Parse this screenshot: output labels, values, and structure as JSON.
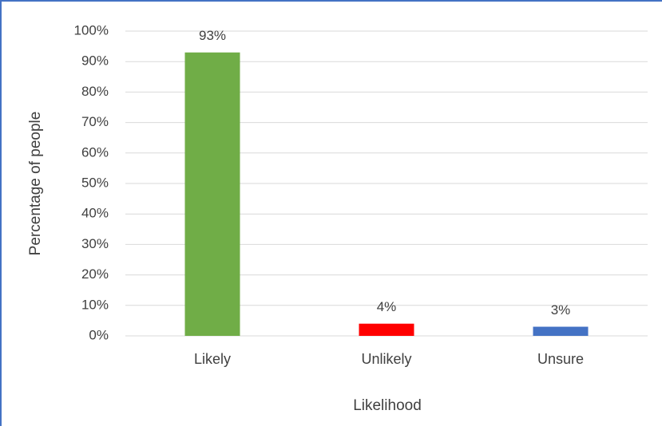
{
  "chart_data": {
    "type": "bar",
    "title": "",
    "xlabel": "Likelihood",
    "ylabel": "Percentage of people",
    "categories": [
      "Likely",
      "Unlikely",
      "Unsure"
    ],
    "values": [
      93,
      4,
      3
    ],
    "value_labels": [
      "93%",
      "4%",
      "3%"
    ],
    "bar_colors": [
      "#70AD47",
      "#FF0000",
      "#4472C4"
    ],
    "ylim": [
      0,
      100
    ],
    "yticks": [
      0,
      10,
      20,
      30,
      40,
      50,
      60,
      70,
      80,
      90,
      100
    ],
    "ytick_labels": [
      "0%",
      "10%",
      "20%",
      "30%",
      "40%",
      "50%",
      "60%",
      "70%",
      "80%",
      "90%",
      "100%"
    ],
    "grid": true,
    "legend": "none"
  },
  "colors": {
    "frame_border": "#4472C4",
    "gridline": "#D9D9D9",
    "axis_line": "#D9D9D9",
    "text": "#404040"
  }
}
